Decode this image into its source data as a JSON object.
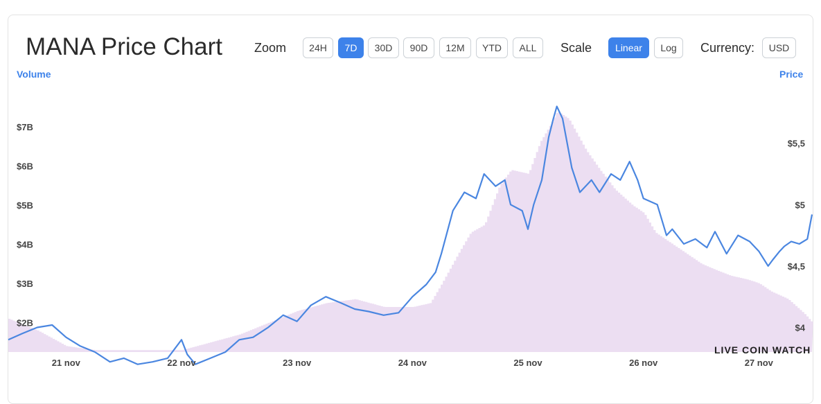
{
  "header": {
    "title": "MANA Price Chart",
    "zoom_label": "Zoom",
    "zoom_options": [
      "24H",
      "7D",
      "30D",
      "90D",
      "12M",
      "YTD",
      "ALL"
    ],
    "zoom_selected": "7D",
    "scale_label": "Scale",
    "scale_options": [
      "Linear",
      "Log"
    ],
    "scale_selected": "Linear",
    "currency_label": "Currency:",
    "currency_value": "USD"
  },
  "watermark": "LIVE COIN WATCH",
  "colors": {
    "accent": "#3d82ea",
    "price_line": "#4a86e0",
    "volume_fill": "#ecdef2"
  },
  "chart_data": {
    "type": "line",
    "x": [
      "21 nov",
      "22 nov",
      "23 nov",
      "24 nov",
      "25 nov",
      "26 nov",
      "27 nov"
    ],
    "x_tick_labels": [
      "21 nov",
      "22 nov",
      "23 nov",
      "24 nov",
      "25 nov",
      "26 nov",
      "27 nov"
    ],
    "xlim": [
      20.5,
      27.46
    ],
    "left_axis": {
      "title": "Volume",
      "ticks": [
        "$2B",
        "$3B",
        "$4B",
        "$5B",
        "$6B",
        "$7B"
      ],
      "tick_values": [
        2,
        3,
        4,
        5,
        6,
        7
      ],
      "ylim": [
        1.25,
        8.15
      ]
    },
    "right_axis": {
      "title": "Price",
      "ticks": [
        "$4",
        "$4,5",
        "$5",
        "$5,5"
      ],
      "tick_values": [
        4.0,
        4.5,
        5.0,
        5.5
      ],
      "ylim": [
        3.8,
        6.0
      ]
    },
    "series": [
      {
        "name": "Price",
        "axis": "right",
        "x": [
          20.5,
          20.62,
          20.75,
          20.88,
          21.0,
          21.12,
          21.25,
          21.38,
          21.5,
          21.62,
          21.75,
          21.88,
          22.0,
          22.05,
          22.12,
          22.25,
          22.38,
          22.5,
          22.62,
          22.75,
          22.88,
          23.0,
          23.12,
          23.25,
          23.38,
          23.5,
          23.62,
          23.75,
          23.88,
          24.0,
          24.12,
          24.2,
          24.25,
          24.35,
          24.45,
          24.55,
          24.62,
          24.72,
          24.8,
          24.85,
          24.95,
          25.0,
          25.05,
          25.12,
          25.18,
          25.22,
          25.25,
          25.3,
          25.38,
          25.45,
          25.55,
          25.62,
          25.72,
          25.8,
          25.88,
          25.95,
          26.0,
          26.12,
          26.2,
          26.25,
          26.35,
          26.45,
          26.55,
          26.62,
          26.72,
          26.82,
          26.92,
          27.0,
          27.08,
          27.12,
          27.18,
          27.22,
          27.28,
          27.35,
          27.42,
          27.46
        ],
        "y": [
          3.9,
          3.95,
          4.0,
          4.02,
          3.92,
          3.85,
          3.8,
          3.72,
          3.75,
          3.7,
          3.72,
          3.75,
          3.9,
          3.78,
          3.7,
          3.75,
          3.8,
          3.9,
          3.92,
          4.0,
          4.1,
          4.05,
          4.18,
          4.25,
          4.2,
          4.15,
          4.13,
          4.1,
          4.12,
          4.25,
          4.35,
          4.45,
          4.6,
          4.95,
          5.1,
          5.05,
          5.25,
          5.15,
          5.2,
          5.0,
          4.95,
          4.8,
          5.0,
          5.2,
          5.55,
          5.7,
          5.8,
          5.7,
          5.3,
          5.1,
          5.2,
          5.1,
          5.25,
          5.2,
          5.35,
          5.2,
          5.05,
          5.0,
          4.75,
          4.8,
          4.68,
          4.72,
          4.65,
          4.78,
          4.6,
          4.75,
          4.7,
          4.62,
          4.5,
          4.55,
          4.62,
          4.66,
          4.7,
          4.68,
          4.72,
          4.92
        ]
      },
      {
        "name": "Volume",
        "axis": "left",
        "x": [
          20.5,
          20.75,
          21.0,
          21.25,
          21.5,
          21.75,
          22.0,
          22.25,
          22.5,
          22.75,
          23.0,
          23.25,
          23.5,
          23.75,
          24.0,
          24.15,
          24.25,
          24.4,
          24.5,
          24.62,
          24.75,
          24.85,
          25.0,
          25.1,
          25.2,
          25.25,
          25.35,
          25.5,
          25.62,
          25.75,
          25.9,
          26.0,
          26.1,
          26.25,
          26.4,
          26.5,
          26.62,
          26.75,
          26.9,
          27.0,
          27.1,
          27.25,
          27.4,
          27.46
        ],
        "y": [
          2.1,
          1.8,
          1.4,
          1.3,
          1.3,
          1.3,
          1.3,
          1.5,
          1.7,
          2.0,
          2.3,
          2.5,
          2.6,
          2.4,
          2.4,
          2.5,
          3.0,
          3.8,
          4.3,
          4.5,
          5.5,
          5.9,
          5.8,
          6.6,
          7.1,
          7.4,
          7.2,
          6.4,
          5.9,
          5.4,
          5.0,
          4.8,
          4.3,
          4.0,
          3.7,
          3.5,
          3.35,
          3.2,
          3.1,
          3.0,
          2.8,
          2.6,
          2.2,
          2.0
        ]
      }
    ]
  }
}
